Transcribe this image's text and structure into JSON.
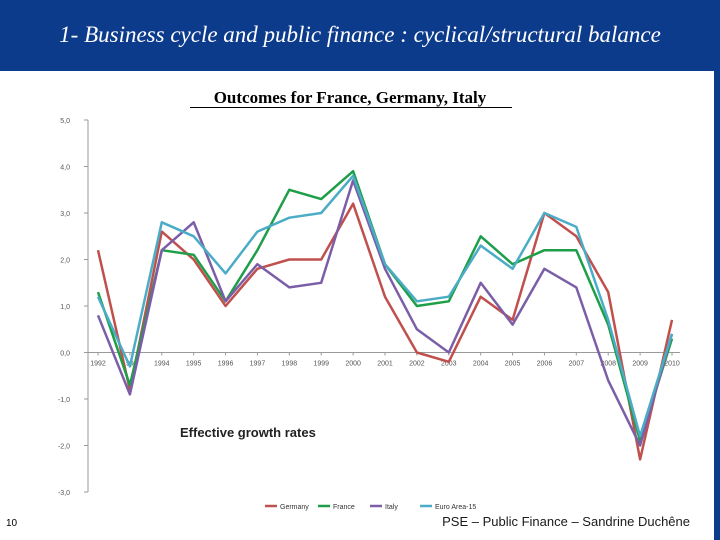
{
  "slide": {
    "title": "1- Business cycle and public finance : cyclical/structural balance",
    "subtitle": "Outcomes for France, Germany, Italy",
    "page_number": "10",
    "footer": "PSE – Public Finance – Sandrine Duchêne",
    "colors": {
      "header_bg": "#0d3b8c",
      "header_text": "#ffffff"
    }
  },
  "chart_data": {
    "type": "line",
    "title": "",
    "annotation": "Effective growth rates",
    "xlabel": "",
    "ylabel": "",
    "categories": [
      "1992",
      "1993",
      "1994",
      "1995",
      "1996",
      "1997",
      "1998",
      "1999",
      "2000",
      "2001",
      "2002",
      "2003",
      "2004",
      "2005",
      "2006",
      "2007",
      "2008",
      "2009",
      "2010"
    ],
    "ylim": [
      -3.0,
      5.0
    ],
    "y_ticks": [
      "5,0",
      "4,0",
      "3,0",
      "2,0",
      "1,0",
      "0,0",
      "-1,0",
      "-2,0",
      "-3,0"
    ],
    "grid": false,
    "legend_position": "bottom",
    "series": [
      {
        "name": "Germany",
        "color": "#c0504d",
        "values": [
          2.2,
          -0.8,
          2.6,
          2.0,
          1.0,
          1.8,
          2.0,
          2.0,
          3.2,
          1.2,
          0.0,
          -0.2,
          1.2,
          0.7,
          3.0,
          2.5,
          1.3,
          -2.3,
          0.7
        ]
      },
      {
        "name": "France",
        "color": "#1e9e48",
        "values": [
          1.3,
          -0.7,
          2.2,
          2.1,
          1.1,
          2.2,
          3.5,
          3.3,
          3.9,
          1.9,
          1.0,
          1.1,
          2.5,
          1.9,
          2.2,
          2.2,
          0.6,
          -1.9,
          0.3
        ]
      },
      {
        "name": "Italy",
        "color": "#7b5ea7",
        "values": [
          0.8,
          -0.9,
          2.2,
          2.8,
          1.1,
          1.9,
          1.4,
          1.5,
          3.7,
          1.8,
          0.5,
          0.0,
          1.5,
          0.6,
          1.8,
          1.4,
          -0.6,
          -2.0,
          0.4
        ]
      },
      {
        "name": "Euro Area-15",
        "color": "#4bacc6",
        "values": [
          1.2,
          -0.3,
          2.8,
          2.5,
          1.7,
          2.6,
          2.9,
          3.0,
          3.8,
          1.9,
          1.1,
          1.2,
          2.3,
          1.8,
          3.0,
          2.7,
          0.7,
          -1.8,
          0.4
        ]
      }
    ]
  }
}
